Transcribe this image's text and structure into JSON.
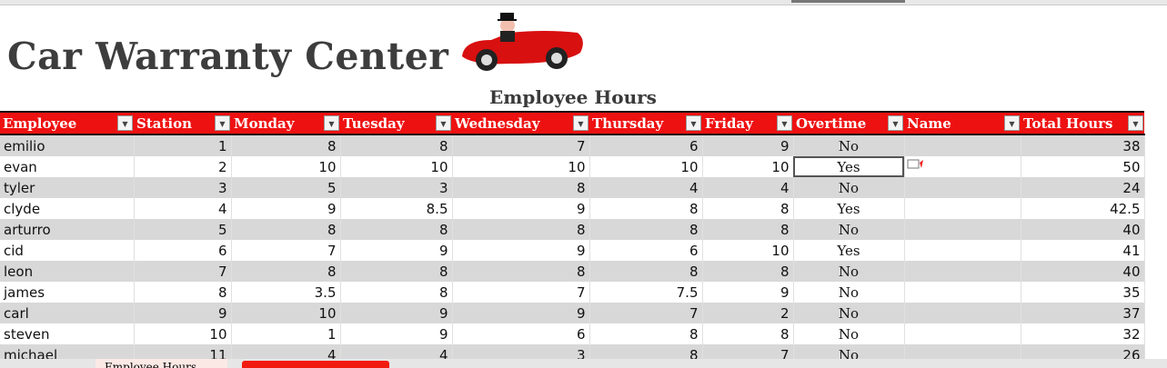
{
  "title": "Car Warranty Center",
  "subtitle": "Employee Hours",
  "columns": [
    "Employee",
    "Station",
    "Monday",
    "Tuesday",
    "Wednesday",
    "Thursday",
    "Friday",
    "Overtime",
    "Name",
    "Total Hours"
  ],
  "rows": [
    [
      "emilio",
      "1",
      "8",
      "8",
      "7",
      "6",
      "9",
      "No",
      "",
      "38"
    ],
    [
      "evan",
      "2",
      "10",
      "10",
      "10",
      "10",
      "10",
      "Yes",
      "",
      "50"
    ],
    [
      "tyler",
      "3",
      "5",
      "3",
      "8",
      "4",
      "4",
      "No",
      "",
      "24"
    ],
    [
      "clyde",
      "4",
      "9",
      "8.5",
      "9",
      "8",
      "8",
      "Yes",
      "",
      "42.5"
    ],
    [
      "arturro",
      "5",
      "8",
      "8",
      "8",
      "8",
      "8",
      "No",
      "",
      "40"
    ],
    [
      "cid",
      "6",
      "7",
      "9",
      "9",
      "6",
      "10",
      "Yes",
      "",
      "41"
    ],
    [
      "leon",
      "7",
      "8",
      "8",
      "8",
      "8",
      "8",
      "No",
      "",
      "40"
    ],
    [
      "james",
      "8",
      "3.5",
      "8",
      "7",
      "7.5",
      "9",
      "No",
      "",
      "35"
    ],
    [
      "carl",
      "9",
      "10",
      "9",
      "9",
      "7",
      "2",
      "No",
      "",
      "37"
    ],
    [
      "steven",
      "10",
      "1",
      "9",
      "6",
      "8",
      "8",
      "No",
      "",
      "32"
    ],
    [
      "michael",
      "11",
      "4",
      "4",
      "3",
      "8",
      "7",
      "No",
      "",
      "26"
    ]
  ],
  "sheet_tabs": [
    "Employee Hours",
    ""
  ],
  "colors": {
    "header": "#ee1111",
    "title": "#3d3d3d",
    "band": "#d8d8d8"
  }
}
